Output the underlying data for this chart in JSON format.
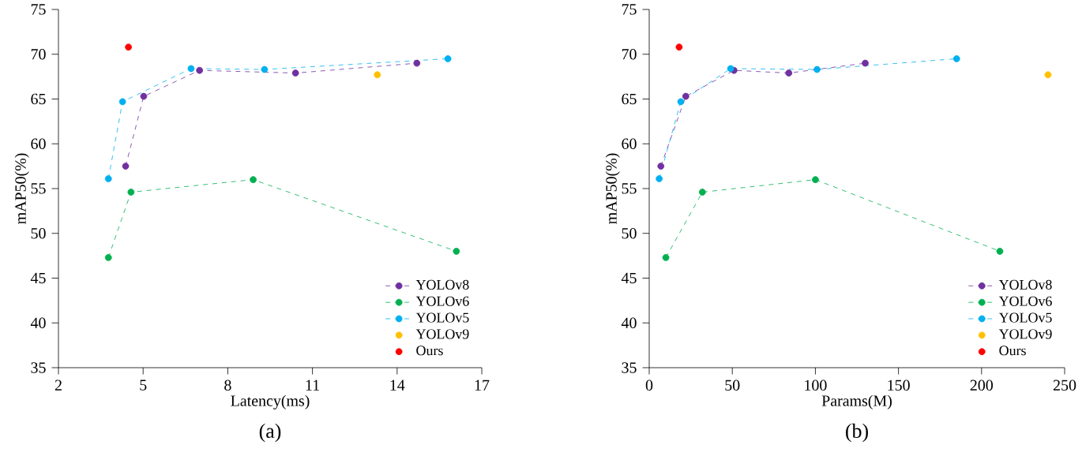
{
  "chart_data": [
    {
      "type": "line",
      "xlabel": "Latency(ms)",
      "ylabel": "mAP50(%)",
      "annotations": [
        "(a)"
      ],
      "xlim": [
        2,
        17
      ],
      "xticks": [
        2,
        5,
        8,
        11,
        14,
        17
      ],
      "ylim": [
        35,
        75
      ],
      "yticks": [
        35,
        40,
        45,
        50,
        55,
        60,
        65,
        70,
        75
      ],
      "grid": false,
      "legend": "bottom right",
      "line_style": "dashed",
      "marker": "circle",
      "series": [
        {
          "name": "YOLOv8",
          "color": "#7030a0",
          "x": [
            4.38,
            5.02,
            7.0,
            10.4,
            14.7
          ],
          "values": [
            57.5,
            65.3,
            68.2,
            67.9,
            69.0
          ]
        },
        {
          "name": "YOLOv6",
          "color": "#00b050",
          "x": [
            3.77,
            4.57,
            8.9,
            16.1
          ],
          "values": [
            47.3,
            54.6,
            56.0,
            48.0
          ]
        },
        {
          "name": "YOLOv5",
          "color": "#00b0f0",
          "x": [
            3.77,
            4.27,
            6.7,
            9.3,
            15.8
          ],
          "values": [
            56.1,
            64.7,
            68.4,
            68.3,
            69.5
          ]
        },
        {
          "name": "YOLOv9",
          "type": "scatter",
          "color": "#ffc000",
          "x": [
            13.3
          ],
          "values": [
            67.7
          ]
        },
        {
          "name": "Ours",
          "type": "scatter",
          "color": "#ff0000",
          "x": [
            4.48
          ],
          "values": [
            70.8
          ]
        }
      ]
    },
    {
      "type": "line",
      "xlabel": "Params(M)",
      "ylabel": "mAP50(%)",
      "annotations": [
        "(b)"
      ],
      "xlim": [
        0,
        250
      ],
      "xticks": [
        0,
        50,
        100,
        150,
        200,
        250
      ],
      "ylim": [
        35,
        75
      ],
      "yticks": [
        35,
        40,
        45,
        50,
        55,
        60,
        65,
        70,
        75
      ],
      "grid": false,
      "legend": "bottom right",
      "line_style": "dashed",
      "marker": "circle",
      "series": [
        {
          "name": "YOLOv8",
          "color": "#7030a0",
          "x": [
            7,
            22,
            51,
            84,
            130
          ],
          "values": [
            57.5,
            65.3,
            68.2,
            67.9,
            69.0
          ]
        },
        {
          "name": "YOLOv6",
          "color": "#00b050",
          "x": [
            10,
            32,
            100,
            211
          ],
          "values": [
            47.3,
            54.6,
            56.0,
            48.0
          ]
        },
        {
          "name": "YOLOv5",
          "color": "#00b0f0",
          "x": [
            6,
            19,
            49,
            101,
            185
          ],
          "values": [
            56.1,
            64.7,
            68.4,
            68.3,
            69.5
          ]
        },
        {
          "name": "YOLOv9",
          "type": "scatter",
          "color": "#ffc000",
          "x": [
            240
          ],
          "values": [
            67.7
          ]
        },
        {
          "name": "Ours",
          "type": "scatter",
          "color": "#ff0000",
          "x": [
            18
          ],
          "values": [
            70.8
          ]
        }
      ]
    }
  ]
}
